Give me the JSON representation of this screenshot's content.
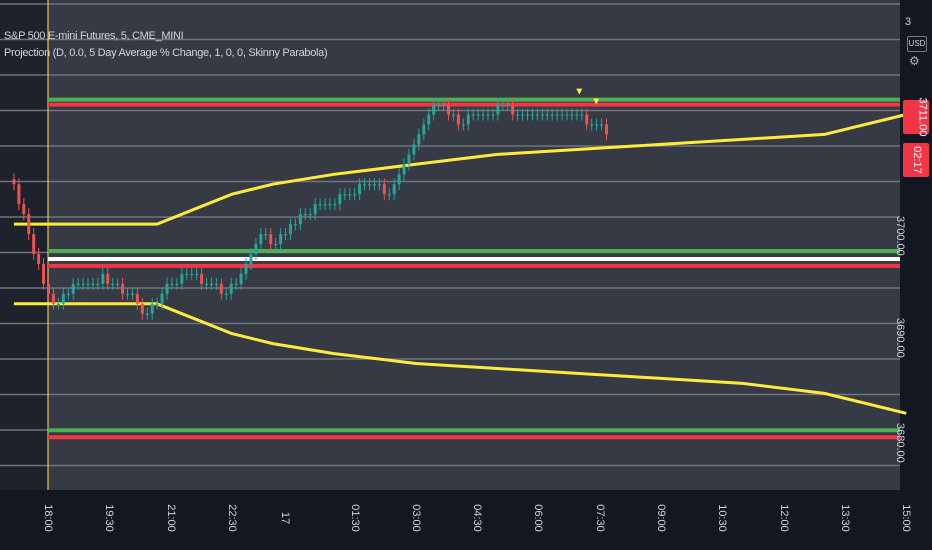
{
  "legend": {
    "line1": "S&P 500 E-mini Futures, 5, CME_MINI",
    "line2": "Projection (D, 0.0, 5 Day Average % Change, 1, 0, 0, Skinny Parabola)"
  },
  "price_scale": {
    "top_value": "3",
    "currency": "USD",
    "settings_icon": "gear-icon",
    "ticks": [
      "3700.00",
      "3690.00",
      "3680.00"
    ],
    "last_price": "3711.00",
    "countdown": "02:17"
  },
  "colors": {
    "background": "#131722",
    "up_candle": "#26a69a",
    "down_candle": "#ef5350",
    "projection": "#ffeb3b",
    "level_red": "#f23645",
    "level_green": "#4caf50",
    "level_white": "#ffffff",
    "grid": "#787b86",
    "session_line": "#ffeb3b"
  },
  "chart_data": {
    "type": "line",
    "title": "S&P 500 E-mini Futures, 5, CME_MINI",
    "x_tick_labels": [
      "18:00",
      "19:30",
      "21:00",
      "22:30",
      "17",
      "01:30",
      "03:00",
      "04:30",
      "06:00",
      "07:30",
      "09:00",
      "10:30",
      "12:00",
      "13:30",
      "15:00"
    ],
    "y_tick_labels": [
      "3700.00",
      "3690.00",
      "3680.00"
    ],
    "ylim": [
      3675.5,
      3724.5
    ],
    "candles": {
      "x_range": [
        "17:10",
        "07:40"
      ],
      "close": [
        3706,
        3704,
        3703,
        3701,
        3699,
        3698,
        3696,
        3695,
        3694,
        3694,
        3695,
        3695,
        3696,
        3696,
        3696,
        3696,
        3696,
        3696,
        3697,
        3696,
        3696,
        3696,
        3695,
        3695,
        3695,
        3694,
        3693,
        3693,
        3694,
        3694,
        3695,
        3696,
        3696,
        3696,
        3697,
        3697,
        3697,
        3697,
        3696,
        3696,
        3696,
        3696,
        3695,
        3695,
        3696,
        3696,
        3697,
        3698,
        3699,
        3700,
        3701,
        3701,
        3700,
        3700,
        3701,
        3701,
        3702,
        3702,
        3703,
        3703,
        3703,
        3704,
        3704,
        3704,
        3704,
        3704,
        3705,
        3705,
        3705,
        3705,
        3706,
        3706,
        3706,
        3706,
        3706,
        3705,
        3705,
        3706,
        3707,
        3708,
        3709,
        3710,
        3711,
        3712,
        3713,
        3714,
        3714,
        3714,
        3713,
        3713,
        3712,
        3712,
        3713,
        3713,
        3713,
        3713,
        3713,
        3713,
        3714,
        3714,
        3714,
        3713,
        3713,
        3713,
        3713,
        3713,
        3713,
        3713,
        3713,
        3713,
        3713,
        3713,
        3713,
        3713,
        3713,
        3713,
        3712,
        3712,
        3712,
        3712,
        3711
      ],
      "up_color": "#26a69a",
      "down_color": "#ef5350"
    },
    "series": [
      {
        "role": "projection-upper",
        "x": [
          "17:10",
          "17:40",
          "18:00",
          "20:40",
          "22:30",
          "23:30",
          "01:00",
          "03:00",
          "05:00",
          "07:00",
          "09:00",
          "11:00",
          "13:00",
          "15:00"
        ],
        "y": [
          3702,
          3702,
          3702,
          3702,
          3705,
          3706,
          3707,
          3708,
          3709,
          3709.5,
          3710,
          3710.5,
          3711,
          3713
        ],
        "color": "#ffeb3b"
      },
      {
        "role": "projection-lower",
        "x": [
          "17:10",
          "17:40",
          "18:00",
          "20:40",
          "22:30",
          "23:30",
          "01:00",
          "03:00",
          "05:00",
          "07:00",
          "09:00",
          "11:00",
          "13:00",
          "15:00"
        ],
        "y": [
          3694,
          3694,
          3694,
          3694,
          3691,
          3690,
          3689,
          3688,
          3687.5,
          3687,
          3686.5,
          3686,
          3685,
          3683
        ],
        "color": "#ffeb3b"
      }
    ],
    "levels": [
      {
        "y": 3714.5,
        "color": "#4caf50"
      },
      {
        "y": 3714.0,
        "color": "#f23645"
      },
      {
        "y": 3699.3,
        "color": "#4caf50"
      },
      {
        "y": 3698.5,
        "color": "#ffffff"
      },
      {
        "y": 3697.8,
        "color": "#f23645"
      },
      {
        "y": 3681.3,
        "color": "#4caf50"
      },
      {
        "y": 3680.6,
        "color": "#f23645"
      }
    ],
    "markers": [
      {
        "x": "07:00",
        "y": 3714.5,
        "shape": "triangle-down",
        "color": "#ffeb3b"
      },
      {
        "x": "07:25",
        "y": 3713.5,
        "shape": "triangle-down",
        "color": "#ffeb3b"
      }
    ],
    "grid": true,
    "legend_position": "top-left"
  }
}
